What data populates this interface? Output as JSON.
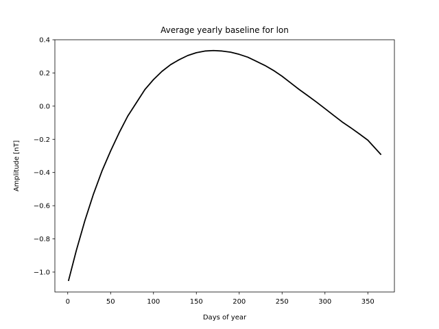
{
  "chart_data": {
    "type": "line",
    "title": "Average yearly baseline for lon",
    "xlabel": "Days of year",
    "ylabel": "Amplitude [nT]",
    "xlim": [
      -15,
      381
    ],
    "ylim": [
      -1.12,
      0.4
    ],
    "xticks": [
      0,
      50,
      100,
      150,
      200,
      250,
      300,
      350
    ],
    "xtick_labels": [
      "0",
      "50",
      "100",
      "150",
      "200",
      "250",
      "300",
      "350"
    ],
    "yticks": [
      0.4,
      0.2,
      0.0,
      -0.2,
      -0.4,
      -0.6,
      -0.8,
      -1.0
    ],
    "ytick_labels": [
      "0.4",
      "0.2",
      "0.0",
      "−0.2",
      "−0.4",
      "−0.6",
      "−0.8",
      "−1.0"
    ],
    "grid": false,
    "series": [
      {
        "color": "#000000",
        "x": [
          1,
          10,
          20,
          30,
          40,
          50,
          60,
          70,
          80,
          90,
          100,
          110,
          120,
          130,
          140,
          150,
          160,
          170,
          180,
          190,
          200,
          210,
          220,
          230,
          240,
          250,
          260,
          270,
          280,
          290,
          300,
          310,
          320,
          330,
          340,
          350,
          365
        ],
        "y": [
          -1.05,
          -0.87,
          -0.69,
          -0.53,
          -0.39,
          -0.27,
          -0.16,
          -0.06,
          0.02,
          0.1,
          0.16,
          0.21,
          0.25,
          0.28,
          0.305,
          0.322,
          0.332,
          0.335,
          0.332,
          0.325,
          0.312,
          0.295,
          0.27,
          0.245,
          0.215,
          0.18,
          0.14,
          0.1,
          0.063,
          0.025,
          -0.015,
          -0.055,
          -0.095,
          -0.13,
          -0.167,
          -0.205,
          -0.29
        ]
      }
    ]
  }
}
